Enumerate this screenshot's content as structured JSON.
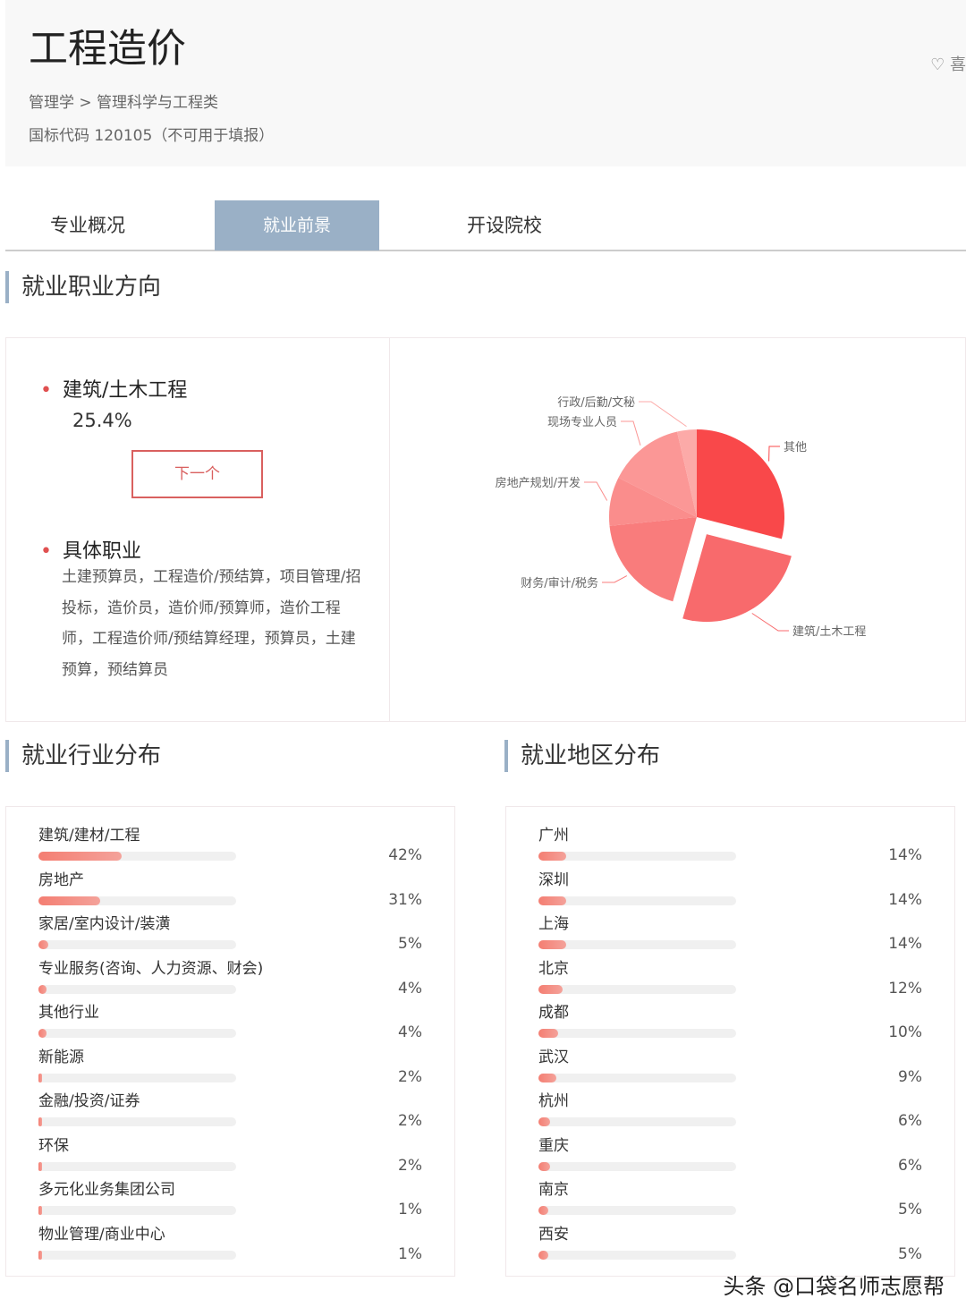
{
  "header": {
    "title": "工程造价",
    "breadcrumb": "管理学 > 管理科学与工程类",
    "code": "国标代码 120105（不可用于填报）",
    "fav_label": "喜"
  },
  "tabs": [
    {
      "label": "专业概况"
    },
    {
      "label": "就业前景",
      "active": true
    },
    {
      "label": "开设院校"
    }
  ],
  "career": {
    "section_title": "就业职业方向",
    "top_name": "建筑/土木工程",
    "top_pct": "25.4%",
    "next_label": "下一个",
    "jobs_title": "具体职业",
    "jobs_text": "土建预算员，工程造价/预结算，项目管理/招投标，造价员，造价师/预算师，造价工程师，工程造价师/预结算经理，预算员，土建预算，预结算员"
  },
  "chart_data": {
    "type": "pie",
    "slices": [
      {
        "label": "其他",
        "value": 29,
        "color": "#f9484a"
      },
      {
        "label": "建筑/土木工程",
        "value": 25.4,
        "color": "#f86a6c",
        "exploded": true
      },
      {
        "label": "财务/审计/税务",
        "value": 19,
        "color": "#f97c7c"
      },
      {
        "label": "房地产规划/开发",
        "value": 9,
        "color": "#fa8d8c"
      },
      {
        "label": "现场专业人员",
        "value": 14,
        "color": "#fb9796"
      },
      {
        "label": "行政/后勤/文秘",
        "value": 3.6,
        "color": "#fcaaa8"
      }
    ]
  },
  "industry": {
    "section_title": "就业行业分布",
    "items": [
      {
        "name": "建筑/建材/工程",
        "value": 42,
        "label": "42%"
      },
      {
        "name": "房地产",
        "value": 31,
        "label": "31%"
      },
      {
        "name": "家居/室内设计/装潢",
        "value": 5,
        "label": "5%"
      },
      {
        "name": "专业服务(咨询、人力资源、财会)",
        "value": 4,
        "label": "4%"
      },
      {
        "name": "其他行业",
        "value": 4,
        "label": "4%"
      },
      {
        "name": "新能源",
        "value": 2,
        "label": "2%"
      },
      {
        "name": "金融/投资/证券",
        "value": 2,
        "label": "2%"
      },
      {
        "name": "环保",
        "value": 2,
        "label": "2%"
      },
      {
        "name": "多元化业务集团公司",
        "value": 1,
        "label": "1%"
      },
      {
        "name": "物业管理/商业中心",
        "value": 1,
        "label": "1%"
      }
    ]
  },
  "region": {
    "section_title": "就业地区分布",
    "items": [
      {
        "name": "广州",
        "value": 14,
        "label": "14%"
      },
      {
        "name": "深圳",
        "value": 14,
        "label": "14%"
      },
      {
        "name": "上海",
        "value": 14,
        "label": "14%"
      },
      {
        "name": "北京",
        "value": 12,
        "label": "12%"
      },
      {
        "name": "成都",
        "value": 10,
        "label": "10%"
      },
      {
        "name": "武汉",
        "value": 9,
        "label": "9%"
      },
      {
        "name": "杭州",
        "value": 6,
        "label": "6%"
      },
      {
        "name": "重庆",
        "value": 6,
        "label": "6%"
      },
      {
        "name": "南京",
        "value": 5,
        "label": "5%"
      },
      {
        "name": "西安",
        "value": 5,
        "label": "5%"
      }
    ]
  },
  "watermark": "头条 @口袋名师志愿帮"
}
